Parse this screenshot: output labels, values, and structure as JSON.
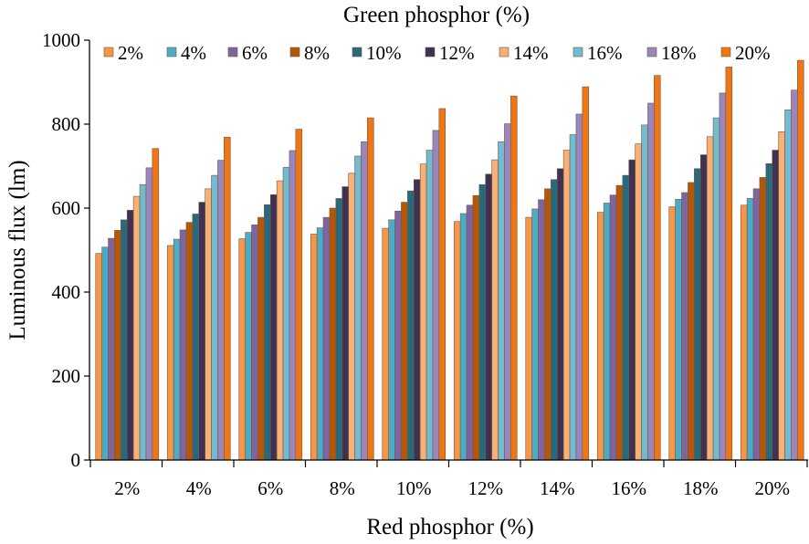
{
  "chart_data": {
    "type": "bar",
    "title": "Green phosphor (%)",
    "xlabel": "Red phosphor (%)",
    "ylabel": "Luminous flux (lm)",
    "ylim": [
      0,
      1000
    ],
    "yticks": [
      0,
      200,
      400,
      600,
      800,
      1000
    ],
    "grid": false,
    "legend_position": "top",
    "categories": [
      "2%",
      "4%",
      "6%",
      "8%",
      "10%",
      "12%",
      "14%",
      "16%",
      "18%",
      "20%"
    ],
    "series": [
      {
        "name": "2%",
        "color": "#f79646",
        "values": [
          492,
          511,
          527,
          538,
          552,
          568,
          578,
          590,
          603,
          607
        ]
      },
      {
        "name": "4%",
        "color": "#4bacc6",
        "values": [
          507,
          526,
          542,
          553,
          572,
          587,
          598,
          612,
          621,
          623
        ]
      },
      {
        "name": "6%",
        "color": "#8064a2",
        "values": [
          528,
          548,
          560,
          578,
          593,
          607,
          620,
          631,
          637,
          646
        ]
      },
      {
        "name": "8%",
        "color": "#b65708",
        "values": [
          547,
          566,
          578,
          600,
          614,
          630,
          646,
          654,
          661,
          673
        ]
      },
      {
        "name": "10%",
        "color": "#276a7c",
        "values": [
          572,
          586,
          608,
          623,
          641,
          656,
          668,
          678,
          694,
          706
        ]
      },
      {
        "name": "12%",
        "color": "#403152",
        "values": [
          595,
          614,
          632,
          651,
          668,
          681,
          694,
          715,
          727,
          738
        ]
      },
      {
        "name": "14%",
        "color": "#f9b074",
        "values": [
          628,
          646,
          665,
          683,
          705,
          715,
          738,
          753,
          770,
          782
        ]
      },
      {
        "name": "16%",
        "color": "#73bcd0",
        "values": [
          656,
          678,
          697,
          724,
          738,
          758,
          775,
          798,
          815,
          834
        ]
      },
      {
        "name": "18%",
        "color": "#9a86bd",
        "values": [
          696,
          714,
          737,
          758,
          785,
          801,
          824,
          850,
          874,
          881
        ]
      },
      {
        "name": "20%",
        "color": "#f07613",
        "values": [
          742,
          769,
          788,
          815,
          837,
          867,
          889,
          916,
          936,
          952
        ]
      }
    ]
  }
}
